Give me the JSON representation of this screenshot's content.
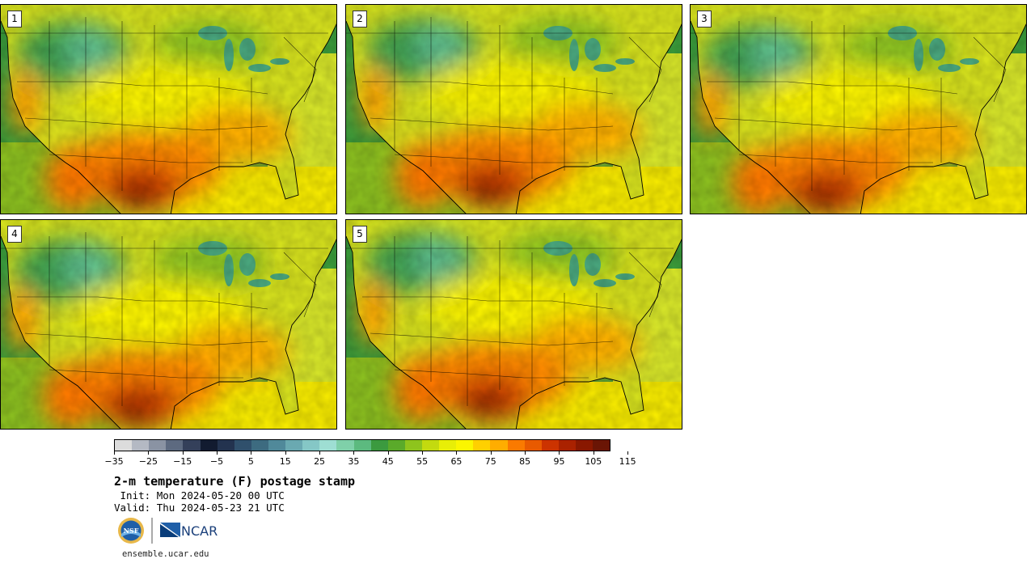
{
  "stamps": [
    {
      "number": "1"
    },
    {
      "number": "2"
    },
    {
      "number": "3"
    },
    {
      "number": "4"
    },
    {
      "number": "5"
    }
  ],
  "colorbar": {
    "tick_labels": [
      "−35",
      "−25",
      "−15",
      "−5",
      "5",
      "15",
      "25",
      "35",
      "45",
      "55",
      "65",
      "75",
      "85",
      "95",
      "105",
      "115"
    ],
    "colors": [
      "#dcdcdc",
      "#b4b9c3",
      "#8a93a3",
      "#5d6a80",
      "#34405a",
      "#121b30",
      "#23334f",
      "#30506c",
      "#3d6b80",
      "#50899a",
      "#6aa9b1",
      "#85c7c6",
      "#9eded3",
      "#7fd0a9",
      "#5cba7f",
      "#3b9a3f",
      "#5aaa2a",
      "#8ec41d",
      "#c3da0f",
      "#e8ee07",
      "#fbf600",
      "#ffd000",
      "#ffad00",
      "#fa7a00",
      "#e85a00",
      "#cc3300",
      "#aa2200",
      "#891800",
      "#6a1505"
    ]
  },
  "title": "2-m temperature (F) postage stamp",
  "init": {
    "label": " Init:",
    "value": "Mon 2024-05-20 00 UTC"
  },
  "valid": {
    "label": "Valid:",
    "value": "Thu 2024-05-23 21 UTC"
  },
  "logos": {
    "nsf": "NSF",
    "ncar": "NCAR"
  },
  "site": "ensemble.ucar.edu"
}
